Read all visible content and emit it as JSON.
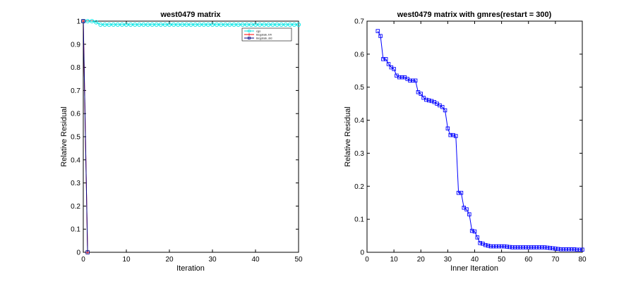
{
  "chart_data": [
    {
      "type": "line",
      "title": "west0479 matrix",
      "xlabel": "Iteration",
      "ylabel": "Relative Residual",
      "xlim": [
        0,
        50
      ],
      "ylim": [
        0,
        1
      ],
      "xticks": [
        0,
        10,
        20,
        30,
        40,
        50
      ],
      "yticks": [
        0,
        0.1,
        0.2,
        0.3,
        0.4,
        0.5,
        0.6,
        0.7,
        0.8,
        0.9,
        1
      ],
      "xtick_labels": [
        "0",
        "10",
        "20",
        "30",
        "40",
        "50"
      ],
      "ytick_labels": [
        "0",
        "0.1",
        "0.2",
        "0.3",
        "0.4",
        "0.5",
        "0.6",
        "0.7",
        "0.8",
        "0.9",
        "1"
      ],
      "legend": {
        "position": "top-right",
        "entries": [
          "cgs",
          "bicgstab, trfr",
          "bicgstab, std"
        ]
      },
      "series": [
        {
          "name": "cgs",
          "color": "#00e5e5",
          "marker": "circle",
          "x": [
            0,
            1,
            2,
            3,
            4,
            5,
            6,
            7,
            8,
            9,
            10,
            11,
            12,
            13,
            14,
            15,
            16,
            17,
            18,
            19,
            20,
            21,
            22,
            23,
            24,
            25,
            26,
            27,
            28,
            29,
            30,
            31,
            32,
            33,
            34,
            35,
            36,
            37,
            38,
            39,
            40,
            41,
            42,
            43,
            44,
            45,
            46,
            47,
            48,
            49,
            50
          ],
          "y": [
            1,
            1,
            1,
            0.995,
            0.985,
            0.985,
            0.985,
            0.985,
            0.985,
            0.985,
            0.985,
            0.985,
            0.985,
            0.985,
            0.985,
            0.985,
            0.985,
            0.985,
            0.985,
            0.985,
            0.985,
            0.985,
            0.985,
            0.985,
            0.985,
            0.985,
            0.985,
            0.985,
            0.985,
            0.985,
            0.985,
            0.985,
            0.985,
            0.985,
            0.985,
            0.985,
            0.985,
            0.985,
            0.985,
            0.985,
            0.985,
            0.985,
            0.985,
            0.985,
            0.985,
            0.985,
            0.985,
            0.985,
            0.985,
            0.985,
            0.985
          ]
        },
        {
          "name": "bicgstab, trfr",
          "color": "#ff0000",
          "marker": "plus",
          "x": [
            0,
            1
          ],
          "y": [
            1,
            0
          ]
        },
        {
          "name": "bicgstab, std",
          "color": "#000080",
          "marker": "square",
          "x": [
            0,
            1
          ],
          "y": [
            1,
            0
          ]
        }
      ]
    },
    {
      "type": "line",
      "title": "west0479 matrix with gmres(restart = 300)",
      "xlabel": "Inner Iteration",
      "ylabel": "Relative Residual",
      "xlim": [
        0,
        80
      ],
      "ylim": [
        0,
        0.7
      ],
      "xticks": [
        0,
        10,
        20,
        30,
        40,
        50,
        60,
        70,
        80
      ],
      "yticks": [
        0,
        0.1,
        0.2,
        0.3,
        0.4,
        0.5,
        0.6,
        0.7
      ],
      "xtick_labels": [
        "0",
        "10",
        "20",
        "30",
        "40",
        "50",
        "60",
        "70",
        "80"
      ],
      "ytick_labels": [
        "0",
        "0.1",
        "0.2",
        "0.3",
        "0.4",
        "0.5",
        "0.6",
        "0.7"
      ],
      "series": [
        {
          "name": "gmres",
          "color": "#0000ff",
          "marker": "square",
          "x": [
            4,
            5,
            6,
            7,
            8,
            9,
            10,
            11,
            12,
            13,
            14,
            15,
            16,
            17,
            18,
            19,
            20,
            21,
            22,
            23,
            24,
            25,
            26,
            27,
            28,
            29,
            30,
            31,
            32,
            33,
            34,
            35,
            36,
            37,
            38,
            39,
            40,
            41,
            42,
            43,
            44,
            45,
            46,
            47,
            48,
            49,
            50,
            51,
            52,
            53,
            54,
            55,
            56,
            57,
            58,
            59,
            60,
            61,
            62,
            63,
            64,
            65,
            66,
            67,
            68,
            69,
            70,
            71,
            72,
            73,
            74,
            75,
            76,
            77,
            78,
            79,
            80
          ],
          "y": [
            0.67,
            0.655,
            0.585,
            0.585,
            0.57,
            0.56,
            0.555,
            0.535,
            0.53,
            0.53,
            0.53,
            0.525,
            0.52,
            0.52,
            0.52,
            0.485,
            0.48,
            0.468,
            0.462,
            0.46,
            0.458,
            0.455,
            0.45,
            0.445,
            0.44,
            0.43,
            0.375,
            0.355,
            0.355,
            0.352,
            0.18,
            0.18,
            0.135,
            0.13,
            0.115,
            0.065,
            0.063,
            0.045,
            0.028,
            0.026,
            0.022,
            0.02,
            0.018,
            0.018,
            0.018,
            0.018,
            0.018,
            0.018,
            0.017,
            0.016,
            0.015,
            0.015,
            0.015,
            0.015,
            0.015,
            0.015,
            0.015,
            0.015,
            0.015,
            0.015,
            0.015,
            0.015,
            0.015,
            0.014,
            0.013,
            0.012,
            0.011,
            0.01,
            0.009,
            0.009,
            0.009,
            0.009,
            0.009,
            0.009,
            0.008,
            0.008,
            0.008
          ]
        }
      ]
    }
  ]
}
